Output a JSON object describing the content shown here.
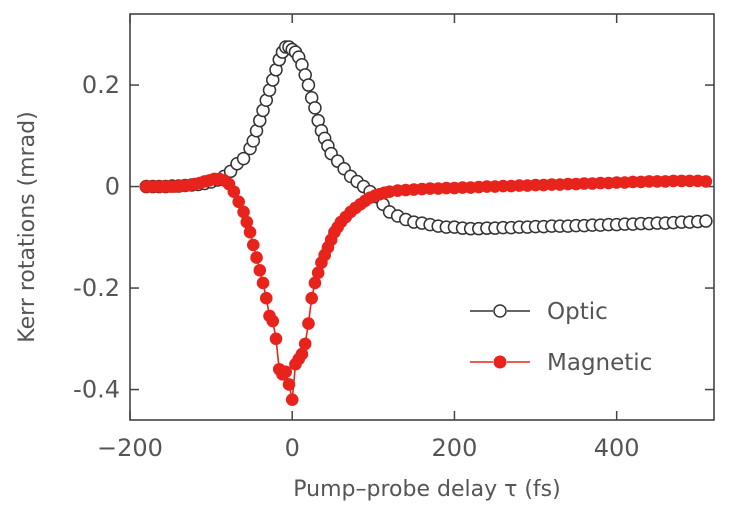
{
  "chart_data": {
    "type": "scatter",
    "title": "",
    "xlabel": "Pump–probe delay τ (fs)",
    "ylabel": "Kerr rotations (mrad)",
    "xlim": [
      -200,
      520
    ],
    "ylim": [
      -0.46,
      0.34
    ],
    "xticks": [
      -200,
      0,
      200,
      400
    ],
    "xtick_labels": [
      "−200",
      "0",
      "200",
      "400"
    ],
    "yticks": [
      -0.4,
      -0.2,
      0,
      0.2
    ],
    "ytick_labels": [
      "-0.4",
      "-0.2",
      "0",
      "0.2"
    ],
    "grid": false,
    "legend_position": "lower-right",
    "series": [
      {
        "name": "Optic",
        "marker": "open-circle",
        "color": "#333333",
        "x": [
          -180,
          -172,
          -164,
          -156,
          -148,
          -140,
          -132,
          -124,
          -116,
          -108,
          -100,
          -92,
          -84,
          -76,
          -68,
          -60,
          -52,
          -48,
          -44,
          -40,
          -36,
          -32,
          -28,
          -24,
          -20,
          -16,
          -12,
          -8,
          -4,
          0,
          4,
          8,
          12,
          16,
          20,
          24,
          28,
          32,
          36,
          40,
          44,
          48,
          56,
          64,
          72,
          80,
          88,
          96,
          104,
          112,
          120,
          130,
          140,
          150,
          160,
          170,
          180,
          190,
          200,
          210,
          220,
          230,
          240,
          250,
          260,
          270,
          280,
          290,
          300,
          310,
          320,
          330,
          340,
          350,
          360,
          370,
          380,
          390,
          400,
          410,
          420,
          430,
          440,
          450,
          460,
          470,
          480,
          490,
          500,
          510
        ],
        "y": [
          0.0,
          0.0,
          0.0,
          0.0,
          0.001,
          0.001,
          0.002,
          0.003,
          0.004,
          0.006,
          0.009,
          0.013,
          0.02,
          0.03,
          0.045,
          0.055,
          0.075,
          0.09,
          0.11,
          0.13,
          0.15,
          0.17,
          0.19,
          0.21,
          0.23,
          0.25,
          0.265,
          0.275,
          0.275,
          0.27,
          0.265,
          0.255,
          0.24,
          0.22,
          0.2,
          0.175,
          0.155,
          0.13,
          0.11,
          0.095,
          0.08,
          0.065,
          0.05,
          0.035,
          0.02,
          0.01,
          0.0,
          -0.01,
          -0.02,
          -0.035,
          -0.05,
          -0.058,
          -0.065,
          -0.07,
          -0.072,
          -0.075,
          -0.078,
          -0.08,
          -0.08,
          -0.082,
          -0.083,
          -0.083,
          -0.082,
          -0.082,
          -0.081,
          -0.081,
          -0.08,
          -0.08,
          -0.079,
          -0.079,
          -0.078,
          -0.078,
          -0.078,
          -0.077,
          -0.077,
          -0.076,
          -0.076,
          -0.075,
          -0.075,
          -0.074,
          -0.074,
          -0.073,
          -0.073,
          -0.072,
          -0.072,
          -0.071,
          -0.07,
          -0.07,
          -0.069,
          -0.068
        ]
      },
      {
        "name": "Magnetic",
        "marker": "filled-circle",
        "color": "#e8231c",
        "x": [
          -180,
          -174,
          -168,
          -162,
          -156,
          -150,
          -144,
          -138,
          -132,
          -126,
          -120,
          -114,
          -108,
          -102,
          -96,
          -90,
          -84,
          -78,
          -72,
          -66,
          -60,
          -56,
          -52,
          -48,
          -44,
          -40,
          -36,
          -32,
          -28,
          -24,
          -20,
          -16,
          -12,
          -8,
          -4,
          0,
          4,
          8,
          12,
          16,
          20,
          24,
          28,
          32,
          36,
          40,
          44,
          48,
          52,
          56,
          60,
          66,
          72,
          78,
          84,
          90,
          96,
          102,
          108,
          114,
          120,
          130,
          140,
          150,
          160,
          170,
          180,
          190,
          200,
          210,
          220,
          230,
          240,
          250,
          260,
          270,
          280,
          290,
          300,
          310,
          320,
          330,
          340,
          350,
          360,
          370,
          380,
          390,
          400,
          410,
          420,
          430,
          440,
          450,
          460,
          470,
          480,
          490,
          500,
          510
        ],
        "y": [
          0.0,
          0.0,
          0.0,
          0.0,
          0.0,
          0.0,
          0.0,
          0.001,
          0.002,
          0.003,
          0.005,
          0.007,
          0.01,
          0.012,
          0.015,
          0.015,
          0.012,
          0.005,
          -0.01,
          -0.03,
          -0.05,
          -0.07,
          -0.09,
          -0.115,
          -0.14,
          -0.165,
          -0.19,
          -0.22,
          -0.255,
          -0.265,
          -0.3,
          -0.36,
          -0.37,
          -0.365,
          -0.39,
          -0.42,
          -0.35,
          -0.34,
          -0.33,
          -0.31,
          -0.27,
          -0.22,
          -0.19,
          -0.17,
          -0.15,
          -0.135,
          -0.12,
          -0.105,
          -0.09,
          -0.08,
          -0.07,
          -0.06,
          -0.05,
          -0.042,
          -0.035,
          -0.028,
          -0.022,
          -0.018,
          -0.015,
          -0.012,
          -0.01,
          -0.008,
          -0.007,
          -0.006,
          -0.005,
          -0.004,
          -0.004,
          -0.003,
          -0.003,
          -0.002,
          -0.002,
          -0.001,
          0.0,
          0.0,
          0.001,
          0.001,
          0.002,
          0.002,
          0.003,
          0.003,
          0.004,
          0.004,
          0.005,
          0.005,
          0.006,
          0.006,
          0.007,
          0.007,
          0.008,
          0.008,
          0.009,
          0.009,
          0.01,
          0.01,
          0.01,
          0.011,
          0.011,
          0.011,
          0.011,
          0.01
        ]
      }
    ]
  }
}
